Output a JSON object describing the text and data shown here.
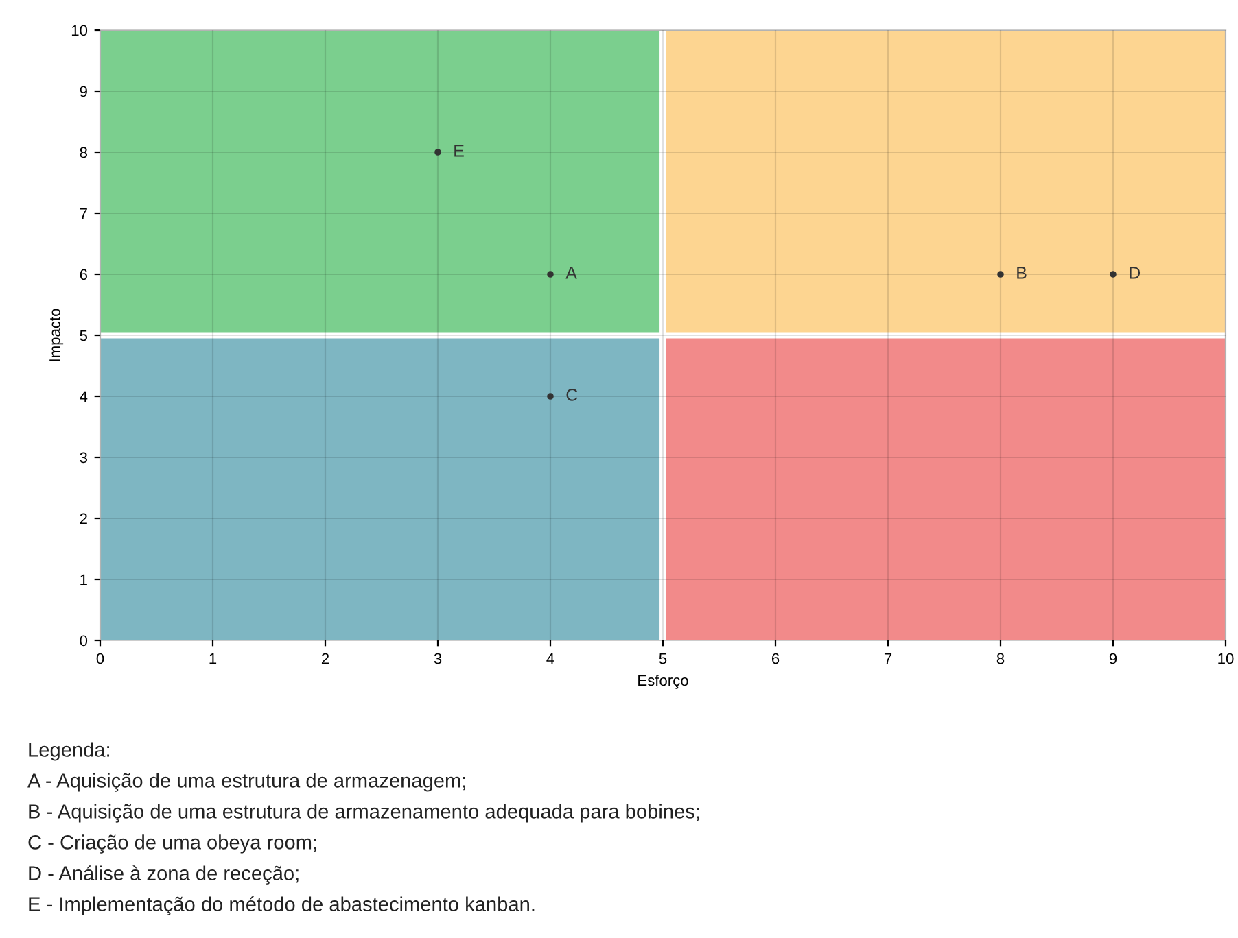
{
  "chart_data": {
    "type": "scatter",
    "xlabel": "Esforço",
    "ylabel": "Impacto",
    "xlim": [
      0,
      10
    ],
    "ylim": [
      0,
      10
    ],
    "xticks": [
      0,
      1,
      2,
      3,
      4,
      5,
      6,
      7,
      8,
      9,
      10
    ],
    "yticks": [
      0,
      1,
      2,
      3,
      4,
      5,
      6,
      7,
      8,
      9,
      10
    ],
    "grid": true,
    "marker": "circle",
    "series": [
      {
        "color": "#333333",
        "x": [
          4,
          8,
          4,
          9,
          3
        ],
        "values": [
          6,
          6,
          4,
          6,
          8
        ],
        "value_labels": [
          "A",
          "B",
          "C",
          "D",
          "E"
        ]
      }
    ],
    "annotations": [
      "Legenda:",
      "A - Aquisição de uma estrutura de armazenagem;",
      "B - Aquisição de uma estrutura de armazenamento adequada para bobines;",
      "C - Criação de uma obeya room;",
      "D - Análise à zona de receção;",
      "E - Implementação do método de abastecimento kanban."
    ]
  }
}
